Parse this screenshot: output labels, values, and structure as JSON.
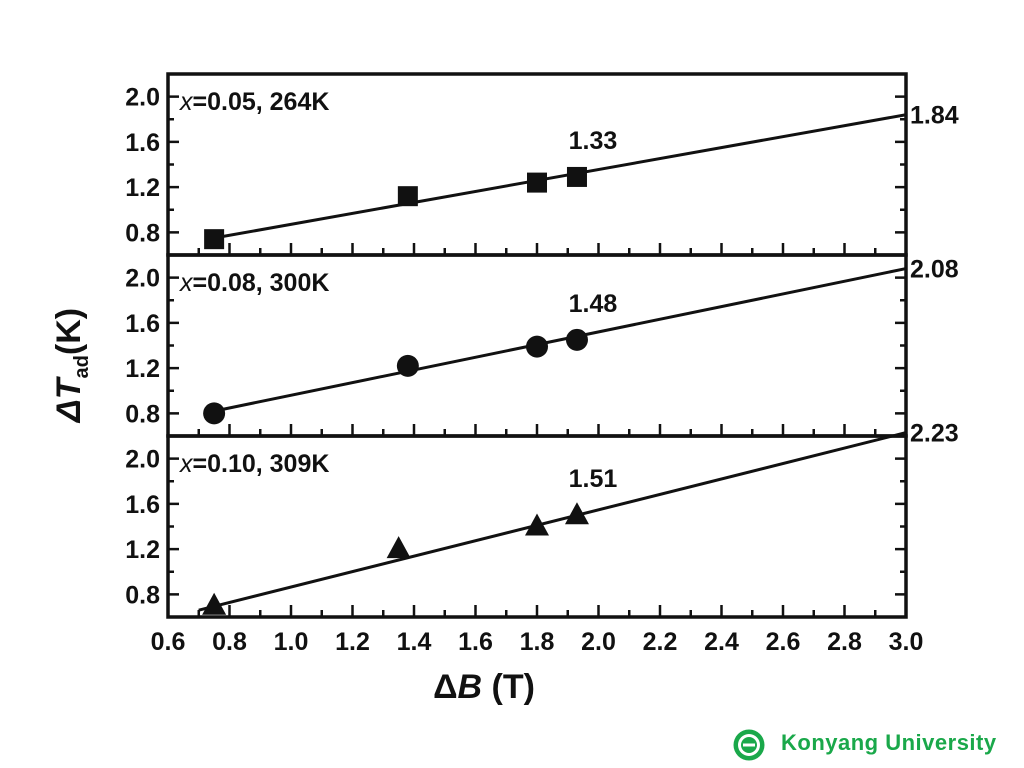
{
  "chart_data": {
    "type": "scatter",
    "xlabel": "ΔB (T)",
    "ylabel_main": "ΔT",
    "ylabel_sub": "ad",
    "ylabel_unit": "(K)",
    "xlim": [
      0.6,
      3.0
    ],
    "x_ticks": [
      "0.6",
      "0.8",
      "1.0",
      "1.2",
      "1.4",
      "1.6",
      "1.8",
      "2.0",
      "2.2",
      "2.4",
      "2.6",
      "2.8",
      "3.0"
    ],
    "ylim": [
      0.6,
      2.2
    ],
    "y_ticks": [
      "0.8",
      "1.2",
      "1.6",
      "2.0"
    ],
    "panels": [
      {
        "label_var": "x",
        "label_rest": "=0.05, 264K",
        "marker": "square",
        "points": [
          {
            "x": 0.75,
            "y": 0.74
          },
          {
            "x": 1.38,
            "y": 1.12
          },
          {
            "x": 1.8,
            "y": 1.24
          },
          {
            "x": 1.93,
            "y": 1.29
          }
        ],
        "fit_line": [
          {
            "x": 0.75,
            "y": 0.75
          },
          {
            "x": 3.0,
            "y": 1.84
          }
        ],
        "annotation_mid": {
          "text": "1.33",
          "x": 1.93
        },
        "annotation_end": "1.84"
      },
      {
        "label_var": "x",
        "label_rest": "=0.08, 300K",
        "marker": "circle",
        "points": [
          {
            "x": 0.75,
            "y": 0.8
          },
          {
            "x": 1.38,
            "y": 1.22
          },
          {
            "x": 1.8,
            "y": 1.39
          },
          {
            "x": 1.93,
            "y": 1.45
          }
        ],
        "fit_line": [
          {
            "x": 0.75,
            "y": 0.82
          },
          {
            "x": 3.0,
            "y": 2.08
          }
        ],
        "annotation_mid": {
          "text": "1.48",
          "x": 1.93
        },
        "annotation_end": "2.08"
      },
      {
        "label_var": "x",
        "label_rest": "=0.10, 309K",
        "marker": "triangle",
        "points": [
          {
            "x": 0.75,
            "y": 0.7
          },
          {
            "x": 1.35,
            "y": 1.2
          },
          {
            "x": 1.8,
            "y": 1.4
          },
          {
            "x": 1.93,
            "y": 1.5
          }
        ],
        "fit_line": [
          {
            "x": 0.7,
            "y": 0.66
          },
          {
            "x": 3.0,
            "y": 2.23
          }
        ],
        "annotation_mid": {
          "text": "1.51",
          "x": 1.93
        },
        "annotation_end": "2.23"
      }
    ]
  },
  "footer": {
    "logo_icon": "university-seal-icon",
    "text": "Konyang  University",
    "color": "#1aa84a"
  }
}
